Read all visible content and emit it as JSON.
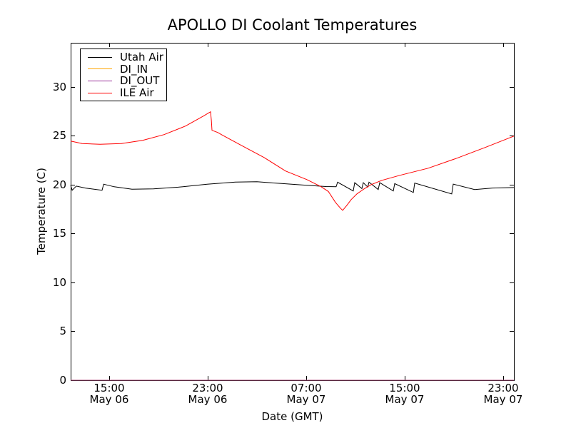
{
  "chart_data": {
    "type": "line",
    "title": "APOLLO DI Coolant Temperatures",
    "xlabel": "Date (GMT)",
    "ylabel": "Temperature (C)",
    "grid": false,
    "legend_position": "upper left",
    "background_color": "#ffffff",
    "axis_color": "#000000",
    "x_unit": "hours since May 06 00:00 GMT",
    "xlim": [
      11.87,
      47.87
    ],
    "ylim": [
      0,
      34.5
    ],
    "yticks": [
      {
        "value": 0,
        "label": "0"
      },
      {
        "value": 5,
        "label": "5"
      },
      {
        "value": 10,
        "label": "10"
      },
      {
        "value": 15,
        "label": "15"
      },
      {
        "value": 20,
        "label": "20"
      },
      {
        "value": 25,
        "label": "25"
      },
      {
        "value": 30,
        "label": "30"
      }
    ],
    "xticks": [
      {
        "hour": 15,
        "time": "15:00",
        "date": "May 06"
      },
      {
        "hour": 23,
        "time": "23:00",
        "date": "May 06"
      },
      {
        "hour": 31,
        "time": "07:00",
        "date": "May 07"
      },
      {
        "hour": 39,
        "time": "15:00",
        "date": "May 07"
      },
      {
        "hour": 47,
        "time": "23:00",
        "date": "May 07"
      }
    ],
    "series": [
      {
        "name": "Utah Air",
        "color": "#000000",
        "points": [
          [
            11.87,
            19.93
          ],
          [
            11.99,
            19.42
          ],
          [
            12.33,
            19.85
          ],
          [
            13.1,
            19.64
          ],
          [
            14.42,
            19.42
          ],
          [
            14.55,
            20.04
          ],
          [
            15.4,
            19.78
          ],
          [
            16.85,
            19.53
          ],
          [
            18.6,
            19.56
          ],
          [
            20.6,
            19.74
          ],
          [
            22.95,
            20.04
          ],
          [
            25.25,
            20.26
          ],
          [
            27.0,
            20.29
          ],
          [
            29.0,
            20.11
          ],
          [
            31.05,
            19.93
          ],
          [
            32.6,
            19.8
          ],
          [
            33.43,
            19.78
          ],
          [
            33.55,
            20.25
          ],
          [
            34.82,
            19.35
          ],
          [
            34.94,
            20.2
          ],
          [
            35.52,
            19.6
          ],
          [
            35.64,
            20.2
          ],
          [
            36.0,
            19.75
          ],
          [
            36.1,
            20.25
          ],
          [
            36.85,
            19.5
          ],
          [
            36.97,
            20.2
          ],
          [
            38.07,
            19.35
          ],
          [
            38.19,
            20.1
          ],
          [
            39.7,
            19.2
          ],
          [
            39.81,
            20.15
          ],
          [
            42.82,
            19.05
          ],
          [
            42.94,
            20.05
          ],
          [
            44.68,
            19.5
          ],
          [
            46.13,
            19.65
          ],
          [
            47.87,
            19.7
          ]
        ]
      },
      {
        "name": "DI_IN",
        "color": "#ffa500",
        "points": [
          [
            11.87,
            0
          ],
          [
            47.87,
            0
          ]
        ]
      },
      {
        "name": "DI_OUT",
        "color": "#993399",
        "points": [
          [
            11.87,
            0
          ],
          [
            47.87,
            0
          ]
        ]
      },
      {
        "name": "ILE Air",
        "color": "#ff0000",
        "points": [
          [
            11.87,
            24.45
          ],
          [
            12.8,
            24.2
          ],
          [
            14.25,
            24.12
          ],
          [
            15.99,
            24.2
          ],
          [
            17.72,
            24.53
          ],
          [
            19.46,
            25.11
          ],
          [
            21.2,
            25.99
          ],
          [
            22.65,
            27.01
          ],
          [
            23.23,
            27.45
          ],
          [
            23.3,
            26.5
          ],
          [
            23.35,
            25.55
          ],
          [
            23.81,
            25.33
          ],
          [
            24.22,
            25.04
          ],
          [
            25.84,
            23.94
          ],
          [
            27.58,
            22.77
          ],
          [
            29.32,
            21.39
          ],
          [
            31.06,
            20.51
          ],
          [
            32.22,
            19.78
          ],
          [
            32.8,
            19.3
          ],
          [
            33.38,
            18.18
          ],
          [
            33.78,
            17.59
          ],
          [
            33.96,
            17.37
          ],
          [
            34.3,
            17.88
          ],
          [
            34.65,
            18.47
          ],
          [
            35.12,
            19.05
          ],
          [
            35.7,
            19.56
          ],
          [
            36.28,
            20.0
          ],
          [
            37.15,
            20.44
          ],
          [
            38.6,
            20.95
          ],
          [
            40.91,
            21.68
          ],
          [
            43.23,
            22.7
          ],
          [
            45.54,
            23.8
          ],
          [
            47.87,
            24.96
          ]
        ]
      }
    ]
  }
}
